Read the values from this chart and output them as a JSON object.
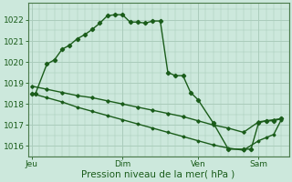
{
  "background_color": "#cce8dc",
  "grid_color": "#aaccbb",
  "line_color": "#1a5c1a",
  "marker_color": "#1a5c1a",
  "xlabel": "Pression niveau de la mer( hPa )",
  "ylabel_ticks": [
    1016,
    1017,
    1018,
    1019,
    1020,
    1021,
    1022
  ],
  "ylim": [
    1015.5,
    1022.8
  ],
  "x_tick_labels": [
    "Jeu",
    "Dim",
    "Ven",
    "Sam"
  ],
  "x_tick_positions": [
    0,
    12,
    22,
    30
  ],
  "xlim": [
    -0.5,
    34
  ],
  "series1_x": [
    0,
    0.5,
    2,
    3,
    4,
    5,
    6,
    7,
    8,
    9,
    10,
    11,
    12,
    13,
    14,
    15,
    16,
    17,
    18,
    19,
    20,
    21,
    22,
    24,
    26,
    28,
    29,
    30,
    31,
    32,
    33
  ],
  "series1_y": [
    1018.5,
    1018.5,
    1019.9,
    1020.1,
    1020.6,
    1020.8,
    1021.1,
    1021.3,
    1021.55,
    1021.85,
    1022.2,
    1022.25,
    1022.25,
    1021.9,
    1021.9,
    1021.85,
    1021.95,
    1021.95,
    1019.5,
    1019.35,
    1019.35,
    1018.55,
    1018.2,
    1017.1,
    1015.85,
    1015.85,
    1015.85,
    1017.1,
    1017.2,
    1017.2,
    1017.3
  ],
  "series2_x": [
    0,
    2,
    4,
    6,
    8,
    10,
    12,
    14,
    16,
    18,
    20,
    22,
    24,
    26,
    28,
    30,
    31,
    32,
    33
  ],
  "series2_y": [
    1018.85,
    1018.7,
    1018.55,
    1018.4,
    1018.3,
    1018.15,
    1018.0,
    1017.85,
    1017.7,
    1017.55,
    1017.4,
    1017.2,
    1017.0,
    1016.85,
    1016.65,
    1017.15,
    1017.2,
    1017.25,
    1017.3
  ],
  "series3_x": [
    0,
    2,
    4,
    6,
    8,
    10,
    12,
    14,
    16,
    18,
    20,
    22,
    24,
    26,
    28,
    30,
    31,
    32,
    33
  ],
  "series3_y": [
    1018.5,
    1018.3,
    1018.1,
    1017.85,
    1017.65,
    1017.45,
    1017.25,
    1017.05,
    1016.85,
    1016.65,
    1016.45,
    1016.25,
    1016.05,
    1015.9,
    1015.8,
    1016.25,
    1016.4,
    1016.55,
    1017.25
  ]
}
